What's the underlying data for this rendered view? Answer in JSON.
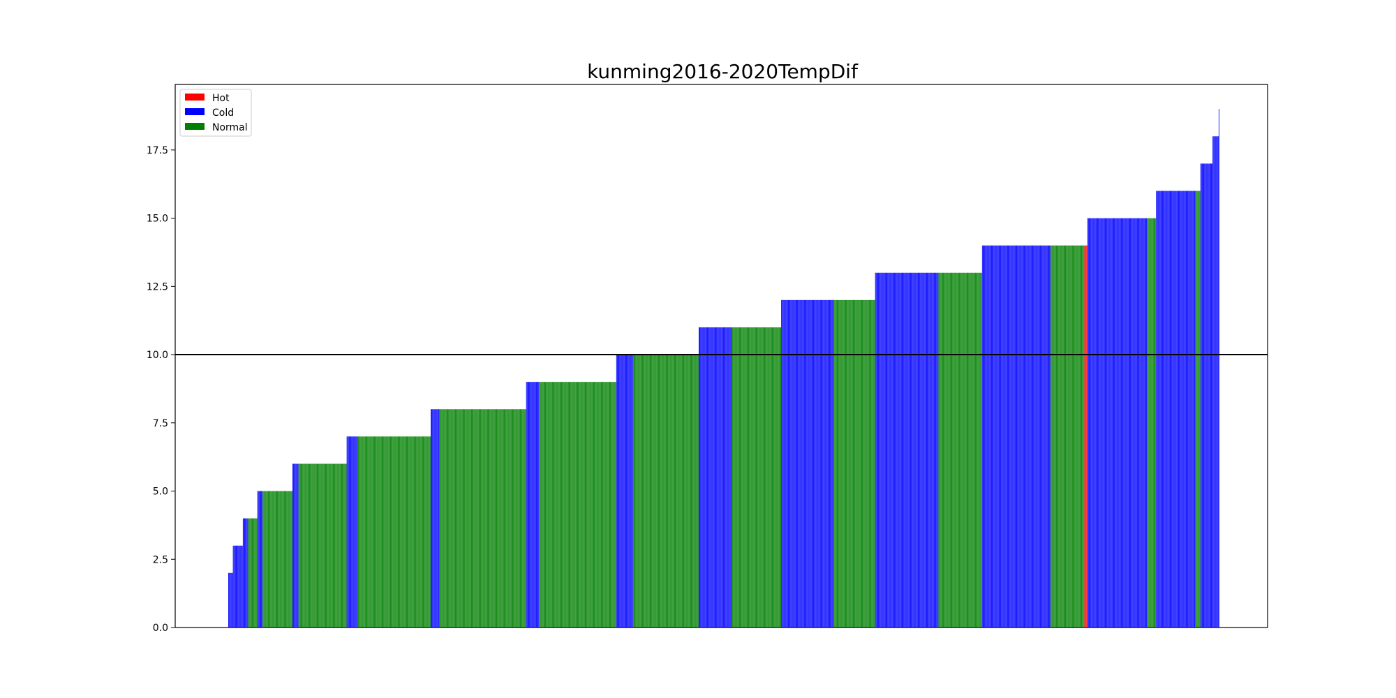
{
  "chart_data": {
    "type": "bar",
    "title": "kunming2016-2020TempDif",
    "xlabel": "",
    "ylabel": "",
    "ylim": [
      0,
      19.9
    ],
    "yticks": [
      "0.0",
      "2.5",
      "5.0",
      "7.5",
      "10.0",
      "12.5",
      "15.0",
      "17.5"
    ],
    "x_axis_labels": "none",
    "grid": false,
    "reference_line": {
      "y": 10.0,
      "color": "#000000"
    },
    "legend": {
      "placement": "upper-left",
      "entries": [
        {
          "label": "Hot",
          "color": "#ff0000"
        },
        {
          "label": "Cold",
          "color": "#0000ff"
        },
        {
          "label": "Normal",
          "color": "#008000"
        }
      ]
    },
    "sort_order": "ascending",
    "segments": [
      {
        "value": 2,
        "category": "Cold",
        "count": 6
      },
      {
        "value": 3,
        "category": "Cold",
        "count": 13
      },
      {
        "value": 4,
        "category": "Cold",
        "count": 7
      },
      {
        "value": 4,
        "category": "Normal",
        "count": 12
      },
      {
        "value": 5,
        "category": "Cold",
        "count": 7
      },
      {
        "value": 5,
        "category": "Normal",
        "count": 39
      },
      {
        "value": 6,
        "category": "Cold",
        "count": 8
      },
      {
        "value": 6,
        "category": "Normal",
        "count": 63
      },
      {
        "value": 7,
        "category": "Cold",
        "count": 14
      },
      {
        "value": 7,
        "category": "Normal",
        "count": 96
      },
      {
        "value": 8,
        "category": "Cold",
        "count": 11
      },
      {
        "value": 8,
        "category": "Normal",
        "count": 114
      },
      {
        "value": 9,
        "category": "Cold",
        "count": 17
      },
      {
        "value": 9,
        "category": "Normal",
        "count": 101
      },
      {
        "value": 10,
        "category": "Cold",
        "count": 22
      },
      {
        "value": 10,
        "category": "Normal",
        "count": 86
      },
      {
        "value": 11,
        "category": "Cold",
        "count": 43
      },
      {
        "value": 11,
        "category": "Normal",
        "count": 65
      },
      {
        "value": 12,
        "category": "Cold",
        "count": 69
      },
      {
        "value": 12,
        "category": "Normal",
        "count": 54
      },
      {
        "value": 13,
        "category": "Cold",
        "count": 83
      },
      {
        "value": 13,
        "category": "Normal",
        "count": 57
      },
      {
        "value": 14,
        "category": "Cold",
        "count": 90
      },
      {
        "value": 14,
        "category": "Normal",
        "count": 44
      },
      {
        "value": 14,
        "category": "Hot",
        "count": 4
      },
      {
        "value": 15,
        "category": "Cold",
        "count": 78
      },
      {
        "value": 15,
        "category": "Normal",
        "count": 12
      },
      {
        "value": 16,
        "category": "Cold",
        "count": 51
      },
      {
        "value": 16,
        "category": "Normal",
        "count": 7
      },
      {
        "value": 17,
        "category": "Cold",
        "count": 16
      },
      {
        "value": 18,
        "category": "Cold",
        "count": 8
      },
      {
        "value": 19,
        "category": "Cold",
        "count": 1
      }
    ]
  }
}
